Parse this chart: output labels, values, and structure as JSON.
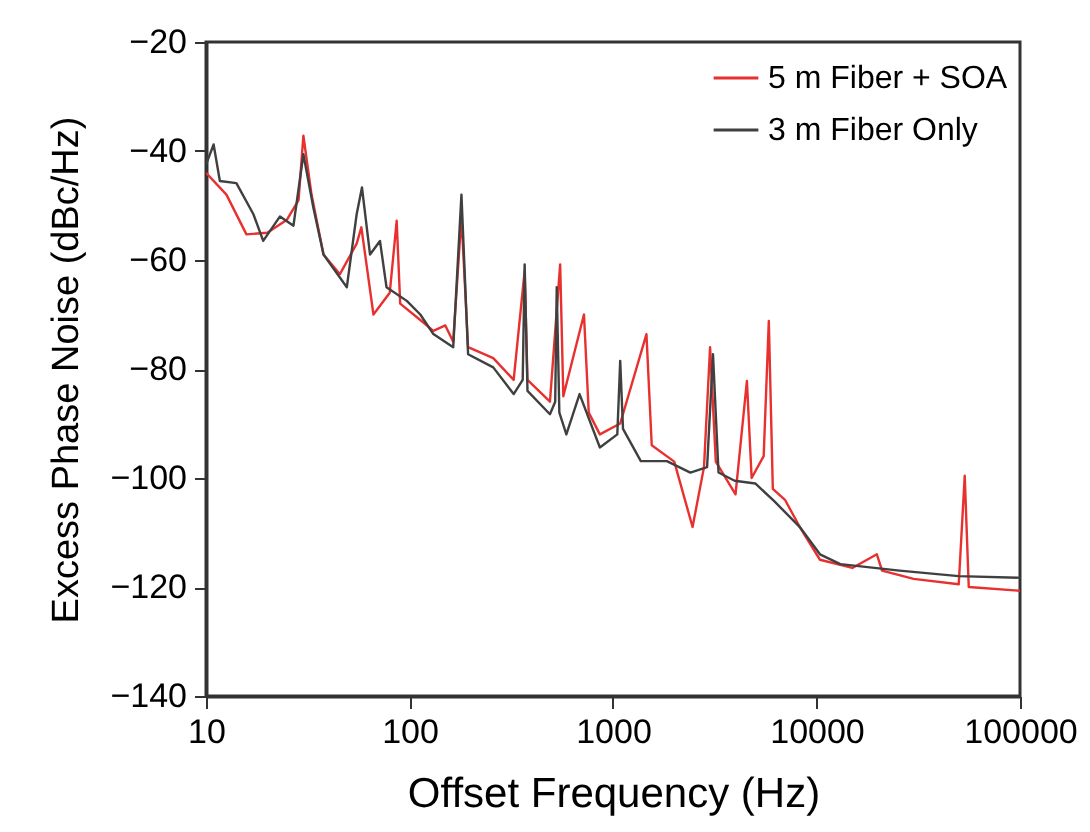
{
  "chart_data": {
    "type": "line",
    "xlabel": "Offset Frequency (Hz)",
    "ylabel": "Excess Phase Noise (dBc/Hz)",
    "log": "x",
    "xlim": [
      10,
      100000
    ],
    "xticks": [
      10,
      100,
      1000,
      10000,
      100000
    ],
    "ylim": [
      -140,
      -20
    ],
    "yticks": [
      -140,
      -120,
      -100,
      -80,
      -60,
      -40,
      -20
    ],
    "grid": false,
    "legend": "top right",
    "marker": "none",
    "line_style": "solid",
    "series": [
      {
        "name": "5 m Fiber + SOA",
        "color": "#e8312f",
        "x": [
          10,
          12.6,
          15.8,
          20,
          25,
          28.5,
          30.1,
          33,
          37.8,
          45.5,
          55,
          58,
          66.5,
          80,
          86.5,
          90,
          113,
          131,
          150,
          164,
          180,
          194,
          258,
          325,
          368,
          380,
          490,
          550,
          570,
          720,
          760,
          862,
          1085,
          1460,
          1550,
          2000,
          2460,
          2800,
          3000,
          3200,
          4000,
          4550,
          4800,
          5500,
          5830,
          6100,
          7000,
          8280,
          10400,
          15000,
          19800,
          21000,
          30000,
          50000,
          53500,
          56000,
          100000
        ],
        "values": [
          -44,
          -48,
          -55.3,
          -55,
          -52.6,
          -49,
          -37.2,
          -48,
          -59,
          -62.6,
          -57,
          -54,
          -70,
          -66,
          -52.8,
          -68,
          -71,
          -73,
          -72,
          -75,
          -52,
          -76,
          -78,
          -82,
          -62,
          -82,
          -86,
          -60.8,
          -85,
          -70,
          -88,
          -92,
          -90,
          -73.6,
          -94,
          -97,
          -109,
          -98,
          -76,
          -97,
          -103,
          -82.2,
          -100,
          -96,
          -71.2,
          -102,
          -104,
          -109,
          -115,
          -116.5,
          -114,
          -117,
          -118.5,
          -119.5,
          -99.6,
          -120,
          -120.7
        ]
      },
      {
        "name": "3 m Fiber Only",
        "color": "#404040",
        "x": [
          10,
          10.9,
          11.7,
          14.1,
          17.1,
          19.1,
          23.1,
          26.9,
          30.1,
          33.7,
          37.8,
          49.2,
          55,
          58.4,
          64,
          71.6,
          77.1,
          97,
          113,
          131,
          164,
          180,
          194,
          258,
          325,
          360,
          368,
          380,
          490,
          520,
          529,
          545,
          590,
          685,
          862,
          1050,
          1085,
          1120,
          1370,
          1840,
          2400,
          2900,
          3100,
          3300,
          3960,
          5000,
          6180,
          8280,
          10400,
          13100,
          25600,
          50000,
          100000
        ],
        "values": [
          -42.5,
          -38.8,
          -45.5,
          -45.9,
          -51.6,
          -56.5,
          -52,
          -53.7,
          -40.6,
          -50.4,
          -59,
          -65,
          -51.6,
          -46.7,
          -59,
          -56.5,
          -65,
          -67.5,
          -70,
          -73.6,
          -76,
          -48,
          -77.3,
          -79.7,
          -84.6,
          -82,
          -60.8,
          -84,
          -88.3,
          -86,
          -65,
          -88,
          -92,
          -84.6,
          -94.4,
          -92,
          -78.5,
          -91,
          -96.9,
          -96.9,
          -99,
          -98,
          -77.3,
          -99,
          -100.5,
          -101,
          -104.2,
          -109,
          -114,
          -115.8,
          -117,
          -118,
          -118.3
        ]
      }
    ]
  }
}
